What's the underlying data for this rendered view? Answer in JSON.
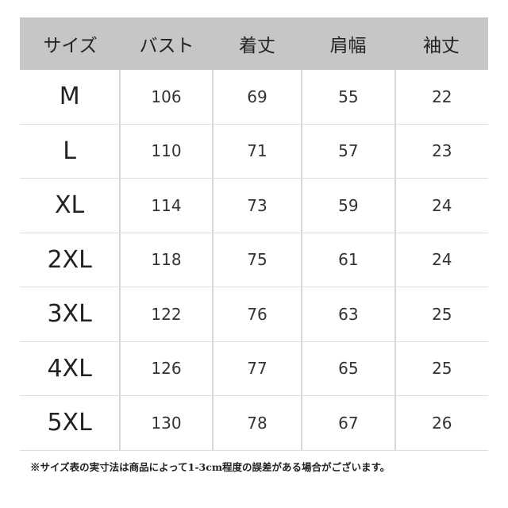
{
  "headers": [
    "サイズ",
    "バスト",
    "着丈",
    "肩幅",
    "袖丈"
  ],
  "rows": [
    [
      "M",
      "106",
      "69",
      "55",
      "22"
    ],
    [
      "L",
      "110",
      "71",
      "57",
      "23"
    ],
    [
      "XL",
      "114",
      "73",
      "59",
      "24"
    ],
    [
      "2XL",
      "118",
      "75",
      "61",
      "24"
    ],
    [
      "3XL",
      "122",
      "76",
      "63",
      "25"
    ],
    [
      "4XL",
      "126",
      "77",
      "65",
      "25"
    ],
    [
      "5XL",
      "130",
      "78",
      "67",
      "26"
    ]
  ],
  "note": "※サイズ表の実寸法は商品によって1-3cm程度の誤差がある場合がございます。",
  "colors": {
    "header_bg": "#c6c6c6"
  }
}
